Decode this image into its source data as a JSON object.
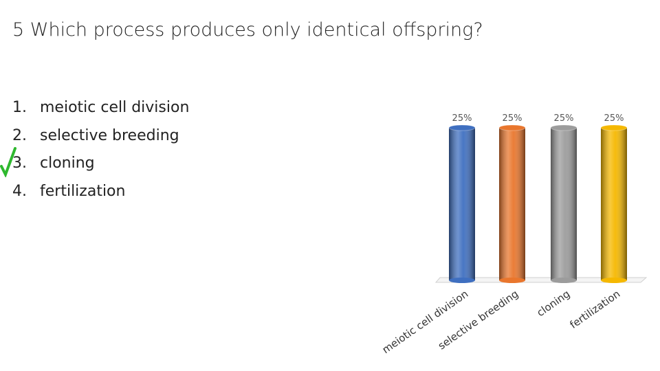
{
  "question": "5 Which process produces only identical offspring?",
  "options": [
    {
      "number": "1.",
      "text": "meiotic cell division"
    },
    {
      "number": "2.",
      "text": "selective breeding"
    },
    {
      "number": "3.",
      "text": "cloning"
    },
    {
      "number": "4.",
      "text": "fertilization"
    }
  ],
  "chart_data": {
    "type": "bar",
    "categories": [
      "meiotic cell division",
      "selective breeding",
      "cloning",
      "fertilization"
    ],
    "values": [
      25,
      25,
      25,
      25
    ],
    "value_labels": [
      "25%",
      "25%",
      "25%",
      "25%"
    ],
    "colors": [
      "#3f6fc0",
      "#e9762d",
      "#9c9c9c",
      "#f5b800"
    ]
  }
}
